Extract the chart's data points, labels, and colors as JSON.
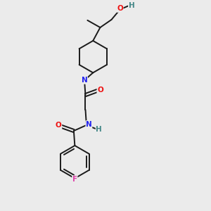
{
  "bg_color": "#ebebeb",
  "bond_color": "#1a1a1a",
  "atom_colors": {
    "N": "#2222ee",
    "O": "#ee1111",
    "F": "#dd44aa",
    "H": "#448888",
    "C": "#1a1a1a"
  },
  "font_size": 7.5,
  "bond_width": 1.4,
  "figsize": [
    3.0,
    3.0
  ],
  "dpi": 100
}
